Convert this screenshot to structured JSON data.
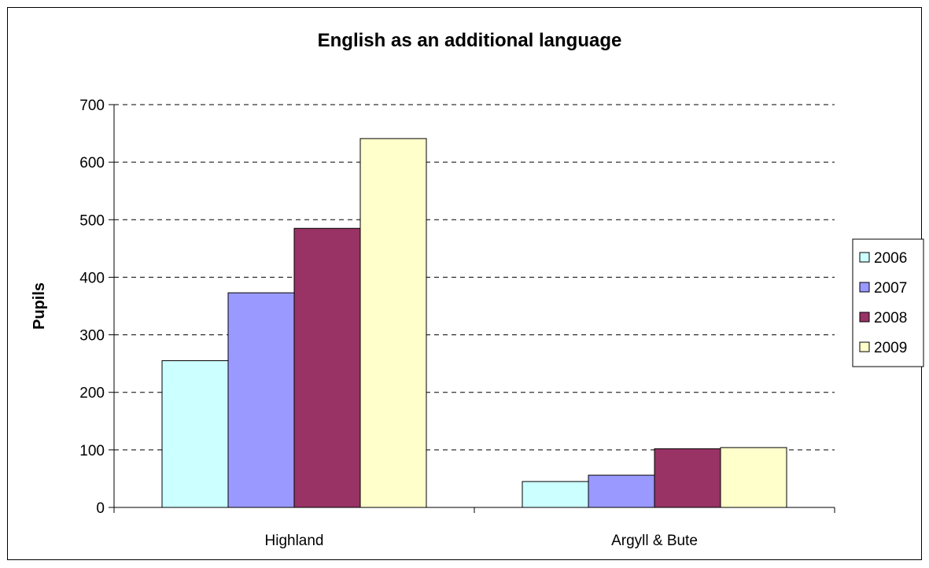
{
  "chart_data": {
    "type": "bar",
    "title": "English as an additional language",
    "ylabel": "Pupils",
    "xlabel": "",
    "categories": [
      "Highland",
      "Argyll & Bute"
    ],
    "series": [
      {
        "name": "2006",
        "values": [
          255,
          45
        ],
        "color": "#ccffff"
      },
      {
        "name": "2007",
        "values": [
          373,
          56
        ],
        "color": "#9999ff"
      },
      {
        "name": "2008",
        "values": [
          485,
          102
        ],
        "color": "#993366"
      },
      {
        "name": "2009",
        "values": [
          641,
          104
        ],
        "color": "#ffffcc"
      }
    ],
    "ylim": [
      0,
      700
    ],
    "yticks": [
      0,
      100,
      200,
      300,
      400,
      500,
      600,
      700
    ],
    "grid": true,
    "legend": "right"
  }
}
